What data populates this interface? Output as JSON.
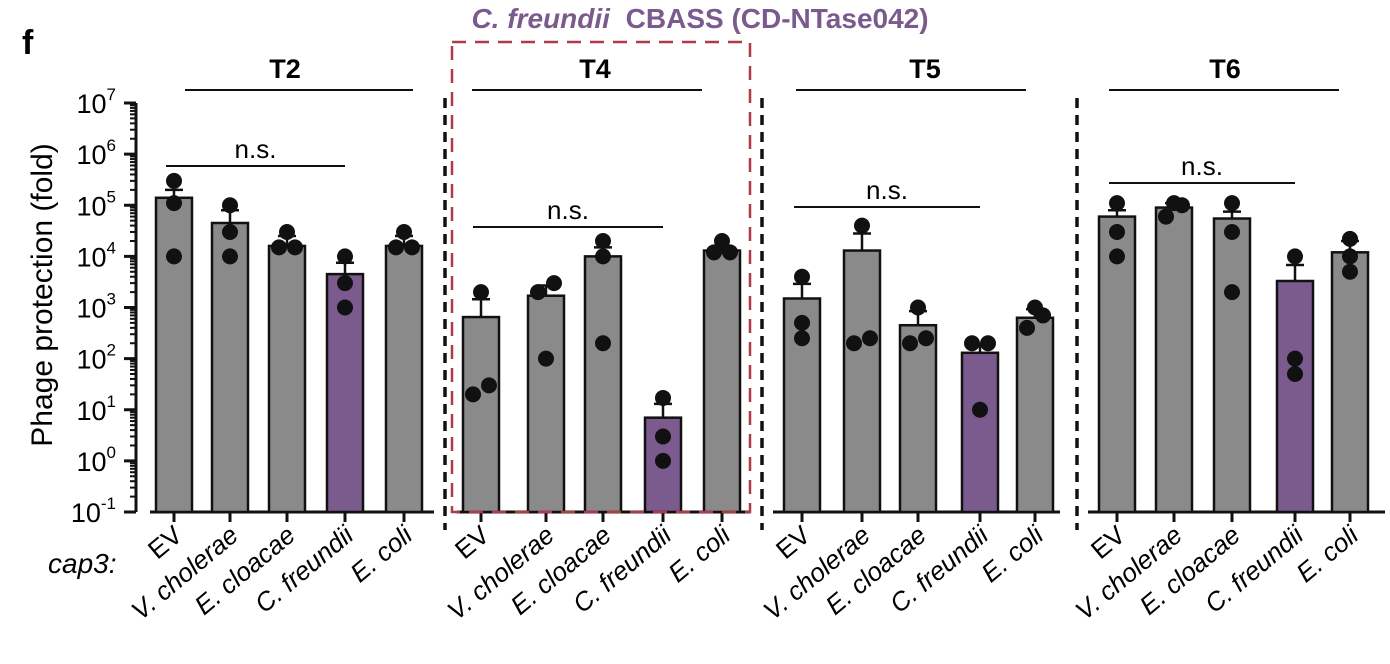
{
  "panel_label": "f",
  "highlight": {
    "organism": "C. freundii",
    "system": "CBASS (CD-NTase042)",
    "panel_index": 1,
    "color": "#b03a48"
  },
  "row_label": "cap3:",
  "colors": {
    "bar_gray": "#8a8a8a",
    "bar_purple": "#7b5a8e",
    "title_purple": "#7b5a8e",
    "dot": "#111111"
  },
  "chart_data": {
    "type": "bar",
    "ylabel": "Phage protection (fold)",
    "yscale": "log10",
    "ylim": [
      0.1,
      10000000
    ],
    "y_ticks": [
      {
        "base": "10",
        "exp": "7"
      },
      {
        "base": "10",
        "exp": "6"
      },
      {
        "base": "10",
        "exp": "5"
      },
      {
        "base": "10",
        "exp": "4"
      },
      {
        "base": "10",
        "exp": "3"
      },
      {
        "base": "10",
        "exp": "2"
      },
      {
        "base": "10",
        "exp": "1"
      },
      {
        "base": "10",
        "exp": "0"
      },
      {
        "base": "10",
        "exp": "-1"
      }
    ],
    "categories": [
      "EV",
      "V. cholerae",
      "E. cloacae",
      "C. freundii",
      "E. coli"
    ],
    "highlight_category": "C. freundii",
    "panels": [
      {
        "phage": "T2",
        "means": [
          140000,
          45000,
          16000,
          4500,
          16000
        ],
        "errors": [
          60000,
          35000,
          9000,
          3000,
          9000
        ],
        "points": [
          [
            10000,
            110000,
            300000
          ],
          [
            10000,
            30000,
            100000
          ],
          [
            15000,
            15000,
            30000
          ],
          [
            1000,
            3000,
            10000
          ],
          [
            15000,
            15000,
            30000
          ]
        ],
        "significance": {
          "label": "n.s.",
          "from": 0,
          "to": 3
        }
      },
      {
        "phage": "T4",
        "means": [
          650,
          1700,
          10000,
          7,
          13000
        ],
        "errors": [
          800,
          1000,
          5000,
          6,
          3000
        ],
        "points": [
          [
            20,
            30,
            2000
          ],
          [
            100,
            2000,
            3000
          ],
          [
            200,
            10000,
            20000
          ],
          [
            1,
            3,
            17
          ],
          [
            12000,
            12000,
            20000
          ]
        ],
        "significance": {
          "label": "n.s.",
          "from": 0,
          "to": 3
        }
      },
      {
        "phage": "T5",
        "means": [
          1500,
          13000,
          450,
          130,
          630
        ],
        "errors": [
          1400,
          15000,
          400,
          60,
          300
        ],
        "points": [
          [
            250,
            500,
            4000
          ],
          [
            200,
            250,
            40000
          ],
          [
            200,
            250,
            1000
          ],
          [
            10,
            200,
            200
          ],
          [
            400,
            700,
            1000
          ]
        ],
        "significance": {
          "label": "n.s.",
          "from": 0,
          "to": 3
        }
      },
      {
        "phage": "T6",
        "means": [
          60000,
          90000,
          55000,
          3300,
          12000
        ],
        "errors": [
          20000,
          20000,
          20000,
          3500,
          8000
        ],
        "points": [
          [
            10000,
            30000,
            110000
          ],
          [
            60000,
            100000,
            110000
          ],
          [
            2000,
            30000,
            110000
          ],
          [
            50,
            100,
            10000
          ],
          [
            5000,
            10000,
            22000
          ]
        ],
        "significance": {
          "label": "n.s.",
          "from": 0,
          "to": 3
        }
      }
    ]
  }
}
